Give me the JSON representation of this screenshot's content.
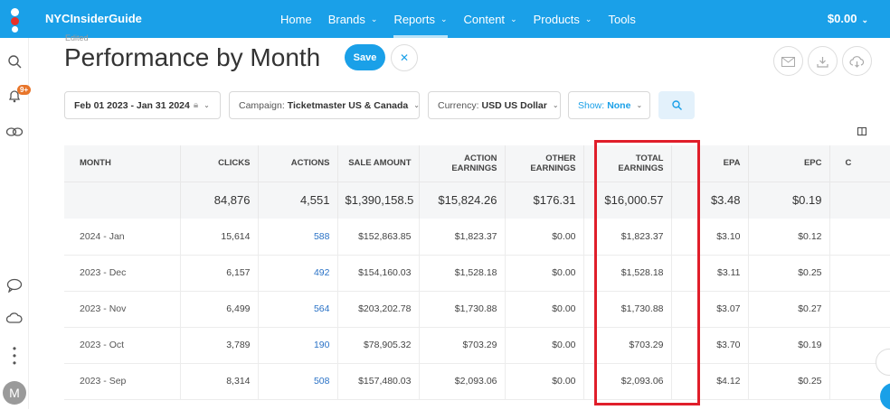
{
  "topbar": {
    "brand": "NYCInsiderGuide",
    "nav": [
      {
        "label": "Home",
        "dropdown": false
      },
      {
        "label": "Brands",
        "dropdown": true
      },
      {
        "label": "Reports",
        "dropdown": true
      },
      {
        "label": "Content",
        "dropdown": true
      },
      {
        "label": "Products",
        "dropdown": true
      },
      {
        "label": "Tools",
        "dropdown": false
      }
    ],
    "balance": "$0.00",
    "accent_color": "#1aa0e8"
  },
  "sidebar": {
    "notification_badge": "9+",
    "avatar_initial": "M"
  },
  "page": {
    "edited_label": "Edited",
    "title": "Performance by Month",
    "save_label": "Save"
  },
  "filters": {
    "date_range": "Feb 01 2023 - Jan 31 2024",
    "campaign_label": "Campaign:",
    "campaign_value": "Ticketmaster US & Canada",
    "currency_label": "Currency:",
    "currency_value": "USD US Dollar",
    "show_label": "Show:",
    "show_value": "None"
  },
  "table": {
    "headers": [
      "MONTH",
      "CLICKS",
      "ACTIONS",
      "SALE AMOUNT",
      "ACTION EARNINGS",
      "OTHER EARNINGS",
      "TOTAL EARNINGS",
      "EPA",
      "EPC",
      "C"
    ],
    "totals": [
      "",
      "84,876",
      "4,551",
      "$1,390,158.5",
      "$15,824.26",
      "$176.31",
      "$16,000.57",
      "$3.48",
      "$0.19",
      ""
    ],
    "rows": [
      [
        "2024 - Jan",
        "15,614",
        "588",
        "$152,863.85",
        "$1,823.37",
        "$0.00",
        "$1,823.37",
        "$3.10",
        "$0.12"
      ],
      [
        "2023 - Dec",
        "6,157",
        "492",
        "$154,160.03",
        "$1,528.18",
        "$0.00",
        "$1,528.18",
        "$3.11",
        "$0.25"
      ],
      [
        "2023 - Nov",
        "6,499",
        "564",
        "$203,202.78",
        "$1,730.88",
        "$0.00",
        "$1,730.88",
        "$3.07",
        "$0.27"
      ],
      [
        "2023 - Oct",
        "3,789",
        "190",
        "$78,905.32",
        "$703.29",
        "$0.00",
        "$703.29",
        "$3.70",
        "$0.19"
      ],
      [
        "2023 - Sep",
        "8,314",
        "508",
        "$157,480.03",
        "$2,093.06",
        "$0.00",
        "$2,093.06",
        "$4.12",
        "$0.25"
      ]
    ],
    "highlight_color": "#e01e2a"
  }
}
